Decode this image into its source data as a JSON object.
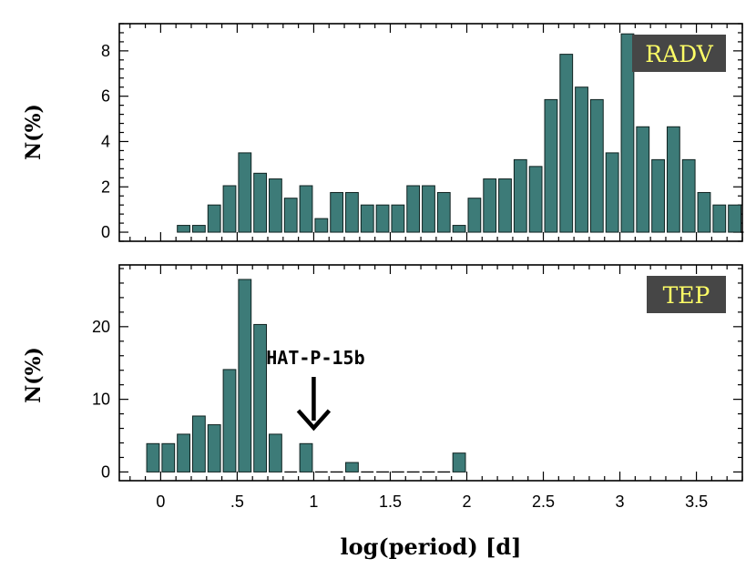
{
  "chart_data": [
    {
      "type": "bar",
      "panel": "top",
      "label": "RADV",
      "ylabel": "N(%)",
      "xlim": [
        -0.27,
        3.8
      ],
      "ylim": [
        -0.4,
        9.2
      ],
      "yticks": [
        0,
        2,
        4,
        6,
        8
      ],
      "bin_width": 0.1,
      "x": [
        -0.05,
        0.05,
        0.15,
        0.25,
        0.35,
        0.45,
        0.55,
        0.65,
        0.75,
        0.85,
        0.95,
        1.05,
        1.15,
        1.25,
        1.35,
        1.45,
        1.55,
        1.65,
        1.75,
        1.85,
        1.95,
        2.05,
        2.15,
        2.25,
        2.35,
        2.45,
        2.55,
        2.65,
        2.75,
        2.85,
        2.95,
        3.05,
        3.15,
        3.25,
        3.35,
        3.45,
        3.55,
        3.65,
        3.75
      ],
      "values": [
        0,
        0,
        0.3,
        0.3,
        1.2,
        2.05,
        3.5,
        2.6,
        2.35,
        1.5,
        2.05,
        0.6,
        1.75,
        1.75,
        1.2,
        1.2,
        1.2,
        2.05,
        2.05,
        1.75,
        0.3,
        1.5,
        2.35,
        2.35,
        3.2,
        2.9,
        5.85,
        7.85,
        6.4,
        5.85,
        3.5,
        8.75,
        4.65,
        3.2,
        4.65,
        3.2,
        1.75,
        1.2,
        1.2
      ]
    },
    {
      "type": "bar",
      "panel": "bottom",
      "label": "TEP",
      "ylabel": "N(%)",
      "xlabel": "log(period)  [d]",
      "xlim": [
        -0.27,
        3.8
      ],
      "ylim": [
        -1.2,
        28.5
      ],
      "yticks": [
        0,
        10,
        20
      ],
      "xticks": [
        0,
        0.5,
        1,
        1.5,
        2,
        2.5,
        3,
        3.5
      ],
      "xtick_labels": [
        "0",
        ".5",
        "1",
        "1.5",
        "2",
        "2.5",
        "3",
        "3.5"
      ],
      "bin_width": 0.1,
      "x": [
        -0.05,
        0.05,
        0.15,
        0.25,
        0.35,
        0.45,
        0.55,
        0.65,
        0.75,
        0.85,
        0.95,
        1.05,
        1.15,
        1.25,
        1.35,
        1.45,
        1.55,
        1.65,
        1.75,
        1.85,
        1.95
      ],
      "values": [
        3.9,
        3.9,
        5.2,
        7.7,
        6.5,
        14.1,
        26.5,
        20.3,
        5.2,
        0,
        3.9,
        0,
        0,
        1.3,
        0,
        0,
        0,
        0,
        0,
        0,
        2.6
      ],
      "annotation": {
        "text": "HAT-P-15b",
        "x": 1.0
      }
    }
  ],
  "colors": {
    "bar_fill": "#3d7b78",
    "bar_edge": "#0f2220",
    "badge_bg": "#464646",
    "badge_text": "#ffff66"
  }
}
